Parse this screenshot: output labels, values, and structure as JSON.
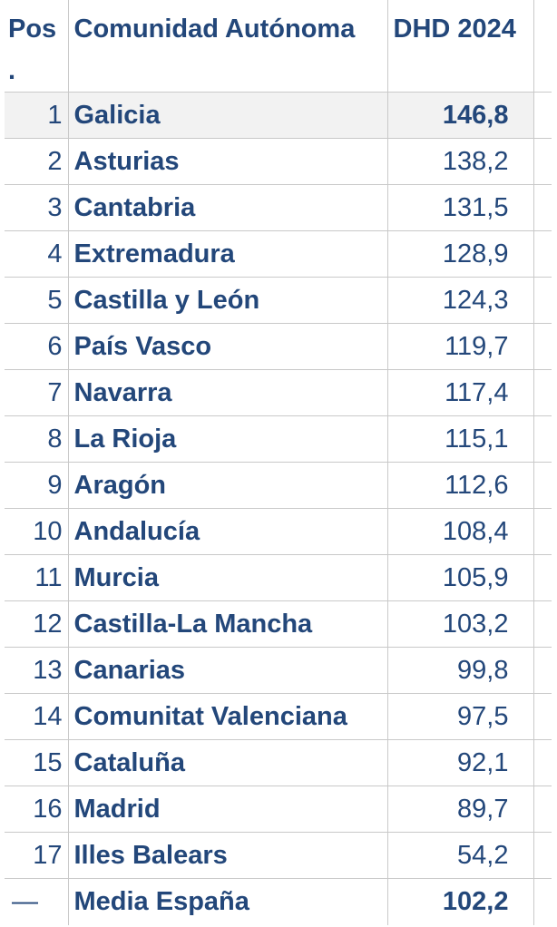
{
  "headers": {
    "pos": "Pos .",
    "community": "Comunidad Autónoma",
    "value": "DHD 2024"
  },
  "rows": [
    {
      "pos": "1",
      "name": "Galicia",
      "value": "146,8"
    },
    {
      "pos": "2",
      "name": "Asturias",
      "value": "138,2"
    },
    {
      "pos": "3",
      "name": "Cantabria",
      "value": "131,5"
    },
    {
      "pos": "4",
      "name": "Extremadura",
      "value": "128,9"
    },
    {
      "pos": "5",
      "name": "Castilla y León",
      "value": "124,3"
    },
    {
      "pos": "6",
      "name": "País Vasco",
      "value": "119,7"
    },
    {
      "pos": "7",
      "name": "Navarra",
      "value": "117,4"
    },
    {
      "pos": "8",
      "name": "La Rioja",
      "value": "115,1"
    },
    {
      "pos": "9",
      "name": "Aragón",
      "value": "112,6"
    },
    {
      "pos": "10",
      "name": "Andalucía",
      "value": "108,4"
    },
    {
      "pos": "11",
      "name": "Murcia",
      "value": "105,9"
    },
    {
      "pos": "12",
      "name": "Castilla-La Mancha",
      "value": "103,2"
    },
    {
      "pos": "13",
      "name": "Canarias",
      "value": "99,8"
    },
    {
      "pos": "14",
      "name": "Comunitat Valenciana",
      "value": "97,5"
    },
    {
      "pos": "15",
      "name": "Cataluña",
      "value": "92,1"
    },
    {
      "pos": "16",
      "name": "Madrid",
      "value": "89,7"
    },
    {
      "pos": "17",
      "name": "Illes Balears",
      "value": "54,2"
    }
  ],
  "average": {
    "pos": "—",
    "name": "Media España",
    "value": "102,2"
  },
  "colors": {
    "text": "#23477a",
    "highlight_row": "#f2f2f2",
    "border": "#c9c9c9"
  }
}
